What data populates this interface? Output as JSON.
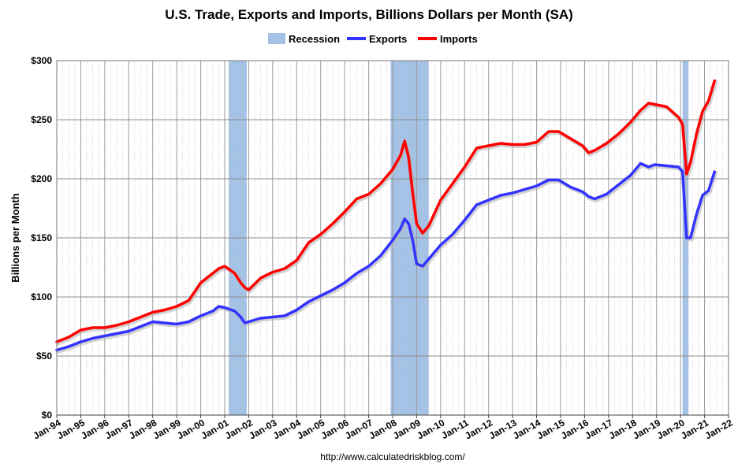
{
  "chart_data": {
    "type": "line",
    "title": "U.S. Trade, Exports and Imports, Billions Dollars per Month (SA)",
    "ylabel": "Billions per Month",
    "xlabel": "",
    "source": "http://www.calculatedriskblog.com/",
    "ylim": [
      0,
      300
    ],
    "xlim": [
      "1994-01",
      "2022-01"
    ],
    "y_ticks": [
      {
        "value": 0,
        "label": "$0"
      },
      {
        "value": 50,
        "label": "$50"
      },
      {
        "value": 100,
        "label": "$100"
      },
      {
        "value": 150,
        "label": "$150"
      },
      {
        "value": 200,
        "label": "$200"
      },
      {
        "value": 250,
        "label": "$250"
      },
      {
        "value": 300,
        "label": "$300"
      }
    ],
    "x_ticks": [
      "Jan-94",
      "Jan-95",
      "Jan-96",
      "Jan-97",
      "Jan-98",
      "Jan-99",
      "Jan-00",
      "Jan-01",
      "Jan-02",
      "Jan-03",
      "Jan-04",
      "Jan-05",
      "Jan-06",
      "Jan-07",
      "Jan-08",
      "Jan-09",
      "Jan-10",
      "Jan-11",
      "Jan-12",
      "Jan-13",
      "Jan-14",
      "Jan-15",
      "Jan-16",
      "Jan-17",
      "Jan-18",
      "Jan-19",
      "Jan-20",
      "Jan-21",
      "Jan-22"
    ],
    "grid": true,
    "legend": {
      "position": "top-center",
      "entries": [
        {
          "name": "Recession",
          "color": "#a3c2e6",
          "kind": "area"
        },
        {
          "name": "Exports",
          "color": "#3333ff",
          "kind": "line"
        },
        {
          "name": "Imports",
          "color": "#ff0000",
          "kind": "line"
        }
      ]
    },
    "recessions": [
      {
        "start": "2001-03",
        "end": "2001-11"
      },
      {
        "start": "2007-12",
        "end": "2009-06"
      },
      {
        "start": "2020-02",
        "end": "2020-04"
      }
    ],
    "series": [
      {
        "name": "Exports",
        "color": "#3333ff",
        "points": [
          [
            "1994-01",
            55
          ],
          [
            "1994-07",
            58
          ],
          [
            "1995-01",
            62
          ],
          [
            "1995-07",
            65
          ],
          [
            "1996-01",
            67
          ],
          [
            "1996-07",
            69
          ],
          [
            "1997-01",
            71
          ],
          [
            "1997-07",
            75
          ],
          [
            "1998-01",
            79
          ],
          [
            "1998-07",
            78
          ],
          [
            "1999-01",
            77
          ],
          [
            "1999-07",
            79
          ],
          [
            "2000-01",
            84
          ],
          [
            "2000-07",
            88
          ],
          [
            "2000-10",
            92
          ],
          [
            "2001-01",
            91
          ],
          [
            "2001-06",
            88
          ],
          [
            "2001-09",
            83
          ],
          [
            "2001-11",
            78
          ],
          [
            "2002-01",
            79
          ],
          [
            "2002-07",
            82
          ],
          [
            "2003-01",
            83
          ],
          [
            "2003-07",
            84
          ],
          [
            "2004-01",
            89
          ],
          [
            "2004-07",
            96
          ],
          [
            "2005-01",
            101
          ],
          [
            "2005-07",
            106
          ],
          [
            "2006-01",
            112
          ],
          [
            "2006-07",
            120
          ],
          [
            "2007-01",
            126
          ],
          [
            "2007-07",
            135
          ],
          [
            "2008-01",
            148
          ],
          [
            "2008-05",
            158
          ],
          [
            "2008-07",
            166
          ],
          [
            "2008-09",
            162
          ],
          [
            "2008-11",
            148
          ],
          [
            "2009-01",
            128
          ],
          [
            "2009-04",
            126
          ],
          [
            "2009-07",
            132
          ],
          [
            "2010-01",
            144
          ],
          [
            "2010-07",
            153
          ],
          [
            "2011-01",
            165
          ],
          [
            "2011-07",
            178
          ],
          [
            "2012-01",
            182
          ],
          [
            "2012-07",
            186
          ],
          [
            "2013-01",
            188
          ],
          [
            "2013-07",
            191
          ],
          [
            "2014-01",
            194
          ],
          [
            "2014-07",
            199
          ],
          [
            "2014-12",
            199
          ],
          [
            "2015-06",
            193
          ],
          [
            "2015-12",
            189
          ],
          [
            "2016-03",
            185
          ],
          [
            "2016-06",
            183
          ],
          [
            "2016-12",
            187
          ],
          [
            "2017-06",
            195
          ],
          [
            "2017-12",
            203
          ],
          [
            "2018-05",
            213
          ],
          [
            "2018-09",
            210
          ],
          [
            "2018-12",
            212
          ],
          [
            "2019-06",
            211
          ],
          [
            "2019-12",
            210
          ],
          [
            "2020-02",
            206
          ],
          [
            "2020-04",
            150
          ],
          [
            "2020-06",
            150
          ],
          [
            "2020-09",
            170
          ],
          [
            "2020-12",
            186
          ],
          [
            "2021-03",
            190
          ],
          [
            "2021-06",
            206
          ]
        ]
      },
      {
        "name": "Imports",
        "color": "#ff0000",
        "points": [
          [
            "1994-01",
            62
          ],
          [
            "1994-07",
            66
          ],
          [
            "1995-01",
            72
          ],
          [
            "1995-07",
            74
          ],
          [
            "1996-01",
            74
          ],
          [
            "1996-07",
            76
          ],
          [
            "1997-01",
            79
          ],
          [
            "1997-07",
            83
          ],
          [
            "1998-01",
            87
          ],
          [
            "1998-07",
            89
          ],
          [
            "1999-01",
            92
          ],
          [
            "1999-07",
            97
          ],
          [
            "2000-01",
            112
          ],
          [
            "2000-07",
            120
          ],
          [
            "2000-10",
            124
          ],
          [
            "2001-01",
            126
          ],
          [
            "2001-06",
            120
          ],
          [
            "2001-09",
            112
          ],
          [
            "2001-11",
            108
          ],
          [
            "2002-01",
            106
          ],
          [
            "2002-07",
            116
          ],
          [
            "2003-01",
            121
          ],
          [
            "2003-07",
            124
          ],
          [
            "2004-01",
            131
          ],
          [
            "2004-07",
            146
          ],
          [
            "2005-01",
            153
          ],
          [
            "2005-07",
            162
          ],
          [
            "2006-01",
            172
          ],
          [
            "2006-07",
            183
          ],
          [
            "2007-01",
            187
          ],
          [
            "2007-07",
            196
          ],
          [
            "2008-01",
            208
          ],
          [
            "2008-05",
            220
          ],
          [
            "2008-07",
            232
          ],
          [
            "2008-09",
            218
          ],
          [
            "2008-11",
            188
          ],
          [
            "2009-01",
            162
          ],
          [
            "2009-04",
            154
          ],
          [
            "2009-07",
            160
          ],
          [
            "2010-01",
            182
          ],
          [
            "2010-07",
            196
          ],
          [
            "2011-01",
            210
          ],
          [
            "2011-07",
            226
          ],
          [
            "2012-01",
            228
          ],
          [
            "2012-07",
            230
          ],
          [
            "2013-01",
            229
          ],
          [
            "2013-07",
            229
          ],
          [
            "2014-01",
            231
          ],
          [
            "2014-07",
            240
          ],
          [
            "2014-12",
            240
          ],
          [
            "2015-06",
            234
          ],
          [
            "2015-12",
            228
          ],
          [
            "2016-03",
            222
          ],
          [
            "2016-06",
            224
          ],
          [
            "2016-12",
            230
          ],
          [
            "2017-06",
            238
          ],
          [
            "2017-12",
            248
          ],
          [
            "2018-05",
            258
          ],
          [
            "2018-09",
            264
          ],
          [
            "2018-12",
            263
          ],
          [
            "2019-06",
            261
          ],
          [
            "2019-12",
            252
          ],
          [
            "2020-02",
            246
          ],
          [
            "2020-04",
            204
          ],
          [
            "2020-06",
            214
          ],
          [
            "2020-09",
            238
          ],
          [
            "2020-12",
            257
          ],
          [
            "2021-03",
            266
          ],
          [
            "2021-06",
            283
          ]
        ]
      }
    ]
  }
}
